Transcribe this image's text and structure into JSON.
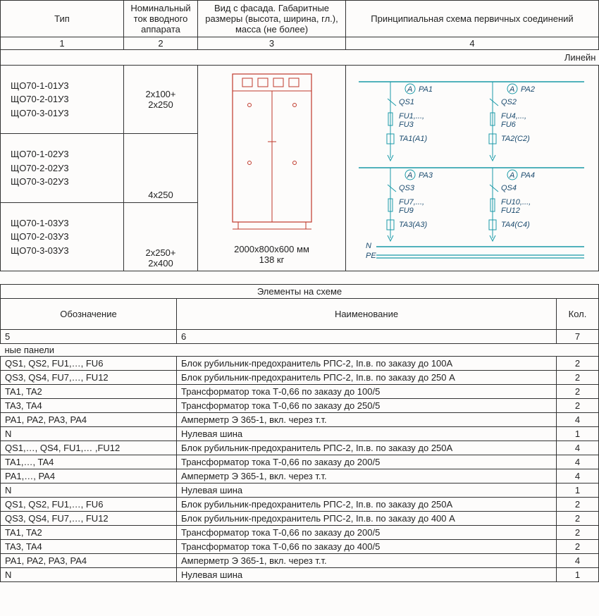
{
  "topHeaders": {
    "col1": "Тип",
    "col2": "Номинальный ток вводного аппарата",
    "col3": "Вид с фасада. Габаритные размеры (высота, ширина, гл.), масса (не более)",
    "col4": "Принципиальная схема первичных соединений"
  },
  "numRow": {
    "c1": "1",
    "c2": "2",
    "c3": "3",
    "c4": "4"
  },
  "lineLabel": "Линейн",
  "typeGroups": [
    {
      "types": [
        "ЩО70-1-01У3",
        "ЩО70-2-01У3",
        "ЩО70-3-01У3"
      ],
      "rating": "2x100+\n2x250"
    },
    {
      "types": [
        "ЩО70-1-02У3",
        "ЩО70-2-02У3",
        "ЩО70-3-02У3"
      ],
      "rating": "4x250"
    },
    {
      "types": [
        "ЩО70-1-03У3",
        "ЩО70-2-03У3",
        "ЩО70-3-03У3"
      ],
      "rating": "2x250+\n2x400"
    }
  ],
  "facade": {
    "dims": "2000x800x600 мм",
    "mass": "138 кг",
    "panel_outline": "#c0392b",
    "body_fill": "#f8f6f4"
  },
  "schematic": {
    "blocks": [
      {
        "pa": "PA1",
        "qs": "QS1",
        "fu_a": "FU1,...,",
        "fu_b": "FU3",
        "ta": "TA1(A1)"
      },
      {
        "pa": "PA2",
        "qs": "QS2",
        "fu_a": "FU4,...,",
        "fu_b": "FU6",
        "ta": "TA2(C2)"
      },
      {
        "pa": "PA3",
        "qs": "QS3",
        "fu_a": "FU7,...,",
        "fu_b": "FU9",
        "ta": "TA3(A3)"
      },
      {
        "pa": "PA4",
        "qs": "QS4",
        "fu_a": "FU10,...,",
        "fu_b": "FU12",
        "ta": "TA4(C4)"
      }
    ],
    "n_label": "N",
    "pe_label": "PE",
    "line_color": "#1a9aa8",
    "text_color": "#1a4a6e"
  },
  "elementsTitle": "Элементы на схеме",
  "elemHeaders": {
    "des": "Обозначение",
    "name": "Наименование",
    "qty": "Кол."
  },
  "elemNumRow": {
    "c5": "5",
    "c6": "6",
    "c7": "7"
  },
  "panelsLabel": "ные панели",
  "elemGroups": [
    [
      {
        "des": "QS1, QS2, FU1,…, FU6",
        "name": "Блок рубильник-предохранитель  РПС-2,  Iп.в. по заказу до 100А",
        "qty": "2"
      },
      {
        "des": "QS3, QS4, FU7,…, FU12",
        "name": "Блок рубильник-предохранитель  РПС-2,  Iп.в. по заказу до 250 А",
        "qty": "2"
      },
      {
        "des": "TA1, TA2",
        "name": "Трансформатор тока Т-0,66 по заказу до 100/5",
        "qty": "2"
      },
      {
        "des": "TA3, TA4",
        "name": "Трансформатор тока Т-0,66 по заказу до 250/5",
        "qty": "2"
      },
      {
        "des": "PA1, PA2, PA3, PA4",
        "name": "Амперметр Э 365-1, вкл. через т.т.",
        "qty": "4"
      },
      {
        "des": "N",
        "name": "Нулевая шина",
        "qty": "1"
      }
    ],
    [
      {
        "des": "QS1,…, QS4, FU1,… ,FU12",
        "name": "Блок рубильник-предохранитель  РПС-2,  Iп.в. по заказу до 250А",
        "qty": "4"
      },
      {
        "des": "TA1,…, TA4",
        "name": "Трансформатор тока Т-0,66 по заказу до 200/5",
        "qty": "4"
      },
      {
        "des": "PA1,…, PA4",
        "name": "Амперметр Э 365-1, вкл. через т.т.",
        "qty": "4"
      },
      {
        "des": "N",
        "name": "Нулевая шина",
        "qty": "1"
      }
    ],
    [
      {
        "des": "QS1, QS2, FU1,…, FU6",
        "name": "Блок рубильник-предохранитель  РПС-2,  Iп.в. по заказу до 250А",
        "qty": "2"
      },
      {
        "des": "QS3, QS4, FU7,…, FU12",
        "name": "Блок рубильник-предохранитель  РПС-2,  Iп.в. по заказу до 400 А",
        "qty": "2"
      },
      {
        "des": "TA1, TA2",
        "name": "Трансформатор тока Т-0,66 по заказу до 200/5",
        "qty": "2"
      },
      {
        "des": "TA3, TA4",
        "name": "Трансформатор тока Т-0,66 по заказу до 400/5",
        "qty": "2"
      },
      {
        "des": "PA1, PA2, PA3, PA4",
        "name": "Амперметр Э 365-1, вкл. через т.т.",
        "qty": "4"
      },
      {
        "des": "N",
        "name": "Нулевая шина",
        "qty": "1"
      }
    ]
  ]
}
